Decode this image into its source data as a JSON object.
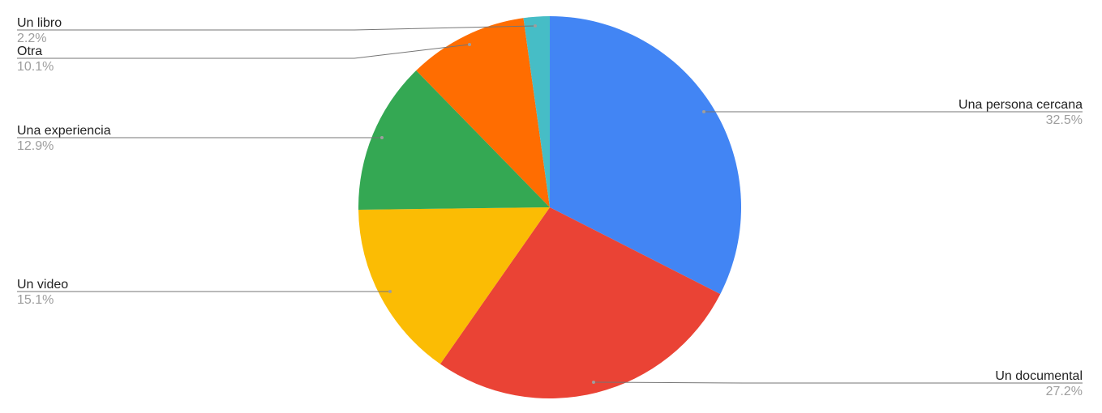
{
  "chart_data": {
    "type": "pie",
    "title": "",
    "start_angle": "top, clockwise",
    "legend": "labels with leader lines",
    "slices": [
      {
        "label": "Una persona cercana",
        "value": 32.5,
        "display": "32.5%",
        "color": "#4285f4"
      },
      {
        "label": "Un documental",
        "value": 27.2,
        "display": "27.2%",
        "color": "#ea4335"
      },
      {
        "label": "Un video",
        "value": 15.1,
        "display": "15.1%",
        "color": "#fbbc04"
      },
      {
        "label": "Una experiencia",
        "value": 12.9,
        "display": "12.9%",
        "color": "#34a853"
      },
      {
        "label": "Otra",
        "value": 10.1,
        "display": "10.1%",
        "color": "#ff6d01"
      },
      {
        "label": "Un libro",
        "value": 2.2,
        "display": "2.2%",
        "color": "#46bdc6"
      }
    ]
  }
}
